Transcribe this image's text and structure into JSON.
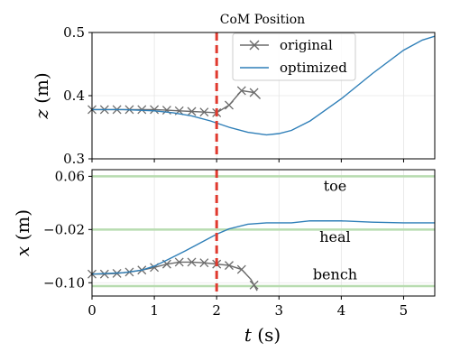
{
  "chart_data": [
    {
      "type": "line",
      "title": "CoM Position",
      "xlabel": "",
      "ylabel_var": "z",
      "ylabel_unit": " (m)",
      "xlim": [
        0,
        5.5
      ],
      "ylim": [
        0.3,
        0.5
      ],
      "xticks": [
        0,
        1,
        2,
        3,
        4,
        5
      ],
      "yticks": [
        0.3,
        0.4,
        0.5
      ],
      "ytick_labels": [
        "0.3",
        "0.4",
        "0.5"
      ],
      "grid": true,
      "legend": "top-center",
      "vline": {
        "x": 2.0,
        "color": "#e03a2f"
      },
      "series": [
        {
          "name": "original",
          "color": "#6b6b6b",
          "marker": "x",
          "x": [
            0,
            0.2,
            0.4,
            0.6,
            0.8,
            1.0,
            1.2,
            1.4,
            1.6,
            1.8,
            2.0,
            2.2,
            2.4,
            2.6,
            2.7
          ],
          "y": [
            0.378,
            0.378,
            0.378,
            0.378,
            0.378,
            0.378,
            0.377,
            0.376,
            0.375,
            0.374,
            0.373,
            0.385,
            0.408,
            0.405,
            0.395
          ],
          "marker_x": [
            0,
            0.2,
            0.4,
            0.6,
            0.8,
            1.0,
            1.2,
            1.4,
            1.6,
            1.8,
            2.0,
            2.2,
            2.4,
            2.6
          ]
        },
        {
          "name": "optimized",
          "color": "#2f7fb8",
          "marker": "none",
          "x": [
            0,
            0.5,
            1.0,
            1.3,
            1.6,
            1.9,
            2.2,
            2.5,
            2.8,
            3.0,
            3.2,
            3.5,
            4.0,
            4.5,
            5.0,
            5.3,
            5.5
          ],
          "y": [
            0.378,
            0.378,
            0.376,
            0.373,
            0.368,
            0.36,
            0.35,
            0.342,
            0.338,
            0.34,
            0.345,
            0.36,
            0.395,
            0.435,
            0.472,
            0.488,
            0.494
          ]
        }
      ]
    },
    {
      "type": "line",
      "title": "",
      "xlabel_var": "t",
      "xlabel_unit": " (s)",
      "ylabel_var": "x",
      "ylabel_unit": " (m)",
      "xlim": [
        0,
        5.5
      ],
      "ylim": [
        -0.12,
        0.07
      ],
      "xticks": [
        0,
        1,
        2,
        3,
        4,
        5
      ],
      "xtick_labels": [
        "0",
        "1",
        "2",
        "3",
        "4",
        "5"
      ],
      "yticks": [
        0.06,
        -0.02,
        -0.1
      ],
      "ytick_labels": [
        "0.06",
        "−0.02",
        "−0.10"
      ],
      "grid": true,
      "vline": {
        "x": 2.0,
        "color": "#e03a2f"
      },
      "hlines": [
        {
          "y": 0.06,
          "label": "toe",
          "label_x": 3.9,
          "label_y": 0.045
        },
        {
          "y": -0.02,
          "label": "heal",
          "label_x": 3.9,
          "label_y": -0.032
        },
        {
          "y": -0.105,
          "label": "bench",
          "label_x": 3.9,
          "label_y": -0.088
        }
      ],
      "hline_color": "#b8dcb0",
      "series": [
        {
          "name": "original",
          "color": "#6b6b6b",
          "marker": "x",
          "x": [
            0,
            0.2,
            0.4,
            0.6,
            0.8,
            1.0,
            1.2,
            1.4,
            1.6,
            1.8,
            2.0,
            2.2,
            2.4,
            2.55,
            2.65
          ],
          "y": [
            -0.087,
            -0.087,
            -0.086,
            -0.084,
            -0.081,
            -0.077,
            -0.072,
            -0.069,
            -0.069,
            -0.07,
            -0.072,
            -0.074,
            -0.08,
            -0.095,
            -0.112
          ],
          "marker_x": [
            0,
            0.2,
            0.4,
            0.6,
            0.8,
            1.0,
            1.2,
            1.4,
            1.6,
            1.8,
            2.0,
            2.2,
            2.4,
            2.6
          ]
        },
        {
          "name": "optimized",
          "color": "#2f7fb8",
          "marker": "none",
          "x": [
            0,
            0.5,
            0.8,
            1.0,
            1.2,
            1.5,
            1.8,
            2.0,
            2.2,
            2.5,
            2.8,
            3.2,
            3.5,
            4.0,
            4.5,
            5.0,
            5.5
          ],
          "y": [
            -0.087,
            -0.085,
            -0.081,
            -0.075,
            -0.066,
            -0.052,
            -0.037,
            -0.027,
            -0.019,
            -0.012,
            -0.01,
            -0.01,
            -0.007,
            -0.007,
            -0.009,
            -0.01,
            -0.01
          ]
        }
      ]
    }
  ]
}
